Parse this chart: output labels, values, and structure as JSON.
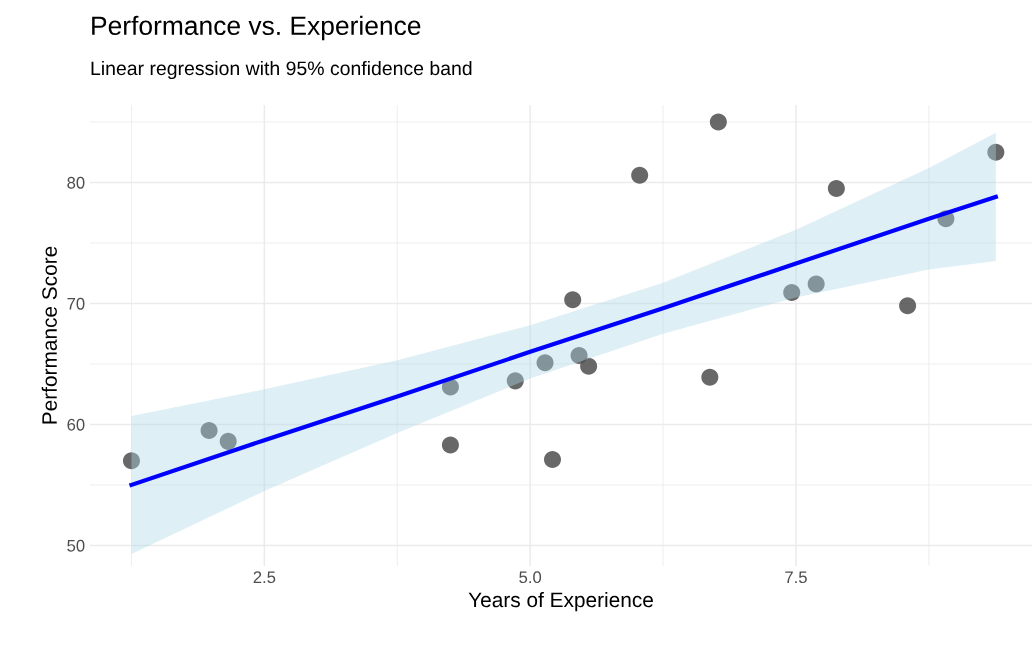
{
  "chart_data": {
    "type": "scatter",
    "title": "Performance vs. Experience",
    "subtitle": "Linear regression with 95% confidence band",
    "xlabel": "Years of Experience",
    "ylabel": "Performance Score",
    "xlim": [
      0.86,
      9.72
    ],
    "ylim": [
      48.3,
      86.4
    ],
    "xticks": [
      {
        "value": 1.25,
        "label": null
      },
      2.5,
      {
        "value": 3.75,
        "label": null
      },
      {
        "value": 5,
        "label": "5.0"
      },
      {
        "value": 6.25,
        "label": null
      },
      7.5,
      {
        "value": 8.75,
        "label": null
      }
    ],
    "yticks": [
      50,
      {
        "value": 55,
        "label": null
      },
      60,
      {
        "value": 65,
        "label": null
      },
      70,
      {
        "value": 75,
        "label": null
      },
      80,
      {
        "value": 85,
        "label": null
      }
    ],
    "grid": true,
    "legend": false,
    "series": [
      {
        "type": "scatter",
        "marker": "circle",
        "color": "#4d4d4d",
        "x": [
          1.25,
          1.98,
          2.16,
          4.25,
          4.25,
          4.86,
          5.14,
          5.21,
          5.4,
          5.46,
          5.55,
          6.03,
          6.69,
          6.77,
          7.46,
          7.69,
          7.88,
          8.55,
          8.91,
          9.38
        ],
        "values": [
          57.0,
          59.5,
          58.6,
          63.1,
          58.3,
          63.6,
          65.1,
          57.1,
          70.3,
          65.7,
          64.8,
          80.6,
          63.9,
          85.0,
          70.9,
          71.6,
          79.5,
          69.8,
          77.0,
          82.5
        ]
      },
      {
        "type": "line",
        "marker": "none",
        "color": "#0000ff",
        "x": [
          1.25,
          2.5,
          3.75,
          5.0,
          6.25,
          7.5,
          8.75,
          9.38
        ],
        "values": [
          55.0,
          58.7,
          62.3,
          66.0,
          69.6,
          73.3,
          77.0,
          78.8
        ],
        "lower": [
          49.3,
          54.5,
          59.3,
          63.8,
          67.5,
          70.5,
          72.8,
          73.5
        ],
        "upper": [
          60.7,
          62.9,
          65.3,
          68.2,
          71.7,
          76.1,
          81.2,
          84.1
        ]
      }
    ]
  }
}
